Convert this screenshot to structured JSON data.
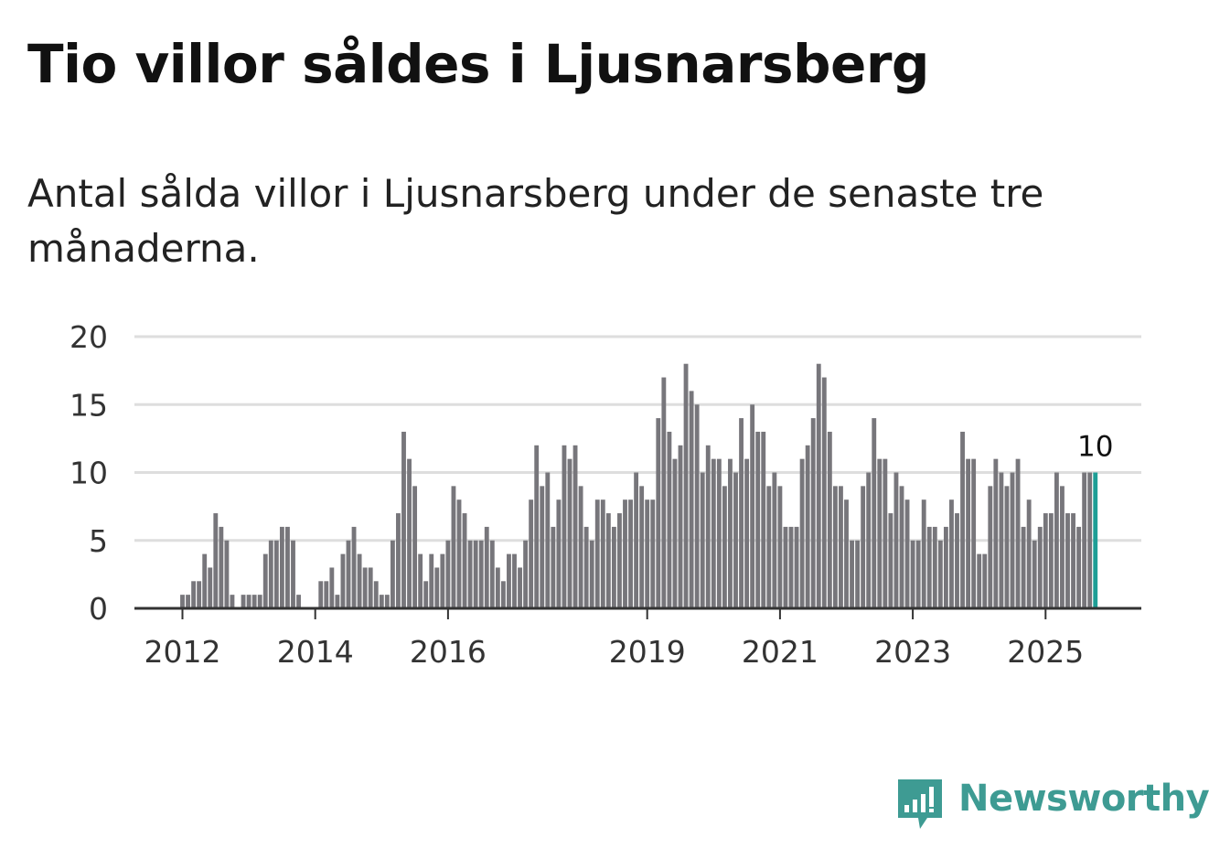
{
  "title": "Tio villor såldes i Ljusnarsberg",
  "subtitle": "Antal sålda villor i Ljusnarsberg under de senaste tre månaderna.",
  "brand": {
    "name": "Newsworthy",
    "color": "#3e9b93"
  },
  "colors": {
    "bar": "#77767b",
    "highlight": "#1e9e96",
    "grid": "#dedede",
    "axis": "#333333"
  },
  "chart_data": {
    "type": "bar",
    "title": "Tio villor såldes i Ljusnarsberg",
    "subtitle": "Antal sålda villor i Ljusnarsberg under de senaste tre månaderna.",
    "xlabel": "",
    "ylabel": "",
    "ylim": [
      0,
      20
    ],
    "y_ticks": [
      0,
      5,
      10,
      15,
      20
    ],
    "x_tick_labels": [
      "2012",
      "2014",
      "2016",
      "2019",
      "2021",
      "2023",
      "2025"
    ],
    "x_tick_month_index": [
      0,
      24,
      48,
      84,
      108,
      132,
      156
    ],
    "first_month_offset": -11,
    "highlight_label": "10",
    "values": [
      0,
      0,
      0,
      0,
      0,
      0,
      0,
      0,
      0,
      0,
      0,
      1,
      1,
      2,
      2,
      4,
      3,
      7,
      6,
      5,
      1,
      0,
      1,
      1,
      1,
      1,
      4,
      5,
      5,
      6,
      6,
      5,
      1,
      0,
      0,
      0,
      2,
      2,
      3,
      1,
      4,
      5,
      6,
      4,
      3,
      3,
      2,
      1,
      1,
      5,
      7,
      13,
      11,
      9,
      4,
      2,
      4,
      3,
      4,
      5,
      9,
      8,
      7,
      5,
      5,
      5,
      6,
      5,
      3,
      2,
      4,
      4,
      3,
      5,
      8,
      12,
      9,
      10,
      6,
      8,
      12,
      11,
      12,
      9,
      6,
      5,
      8,
      8,
      7,
      6,
      7,
      8,
      8,
      10,
      9,
      8,
      8,
      14,
      17,
      13,
      11,
      12,
      18,
      16,
      15,
      10,
      12,
      11,
      11,
      9,
      11,
      10,
      14,
      11,
      15,
      13,
      13,
      9,
      10,
      9,
      6,
      6,
      6,
      11,
      12,
      14,
      18,
      17,
      13,
      9,
      9,
      8,
      5,
      5,
      9,
      10,
      14,
      11,
      11,
      7,
      10,
      9,
      8,
      5,
      5,
      8,
      6,
      6,
      5,
      6,
      8,
      7,
      13,
      11,
      11,
      4,
      4,
      9,
      11,
      10,
      9,
      10,
      11,
      6,
      8,
      5,
      6,
      7,
      7,
      10,
      9,
      7,
      7,
      6,
      10,
      10,
      10
    ]
  }
}
